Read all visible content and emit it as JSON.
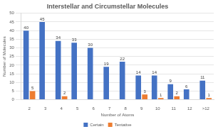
{
  "chart_data": {
    "type": "bar",
    "title": "Interstellar and Circumstellar Molecules",
    "x_label": "Number of Atoms",
    "y_label": "Number of Molecules",
    "categories": [
      "2",
      "3",
      "4",
      "5",
      "6",
      "7",
      "8",
      "9",
      "10",
      "11",
      "12",
      ">12"
    ],
    "series": [
      {
        "name": "Certain",
        "color": "#4472c4",
        "values": [
          40,
          45,
          34,
          33,
          30,
          19,
          22,
          14,
          14,
          9,
          6,
          11
        ]
      },
      {
        "name": "Tentative",
        "color": "#ed7d31",
        "values": [
          5,
          null,
          2,
          null,
          null,
          null,
          null,
          3,
          1,
          2,
          null,
          1
        ]
      }
    ],
    "ylim": [
      0,
      50
    ],
    "yticks": [
      0,
      5,
      10,
      15,
      20,
      25,
      30,
      35,
      40,
      45,
      50
    ],
    "grid": true,
    "legend": "bottom",
    "data_labels": true
  }
}
